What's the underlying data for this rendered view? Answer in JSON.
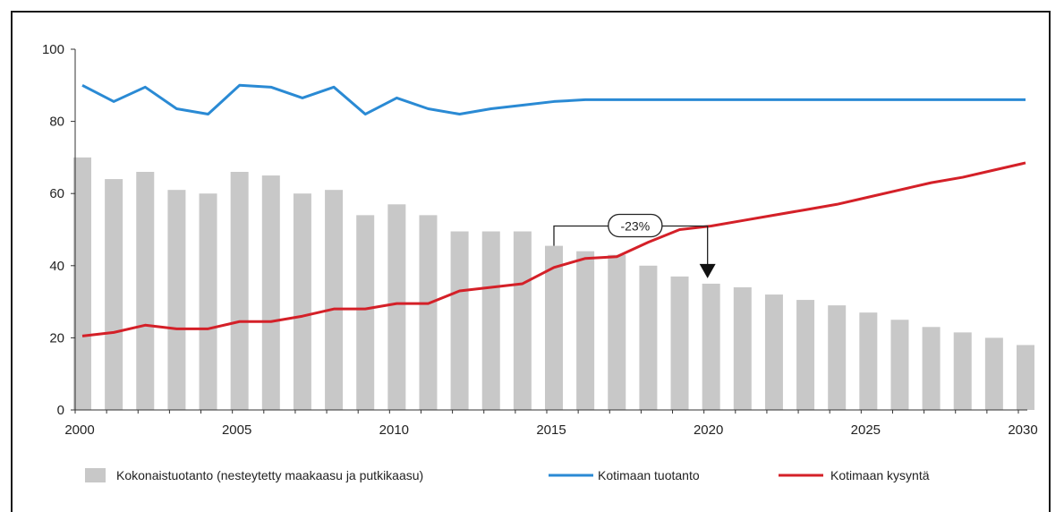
{
  "chart_data": {
    "type": "bar",
    "x": [
      2000,
      2001,
      2002,
      2003,
      2004,
      2005,
      2006,
      2007,
      2008,
      2009,
      2010,
      2011,
      2012,
      2013,
      2014,
      2015,
      2016,
      2017,
      2018,
      2019,
      2020,
      2021,
      2022,
      2023,
      2024,
      2025,
      2026,
      2027,
      2028,
      2029,
      2030
    ],
    "ylim": [
      0,
      100
    ],
    "yticks": [
      0,
      20,
      40,
      60,
      80,
      100
    ],
    "xticks": [
      2000,
      2005,
      2010,
      2015,
      2020,
      2025,
      2030
    ],
    "grid": false,
    "legend_position": "bottom",
    "series": [
      {
        "name": "Kokonaistuotanto (nesteytetty maakaasu ja putkikaasu)",
        "kind": "bar",
        "color": "#c8c8c8",
        "values": [
          70,
          64,
          66,
          61,
          60,
          66,
          65,
          60,
          61,
          54,
          57,
          54,
          49.5,
          49.5,
          49.5,
          45.5,
          44,
          43,
          40,
          37,
          35,
          34,
          32,
          30.5,
          29,
          27,
          25,
          23,
          21.5,
          20,
          18
        ]
      },
      {
        "name": "Kotimaan tuotanto",
        "kind": "line",
        "color": "#2a8ad4",
        "values": [
          90,
          85.5,
          89.5,
          83.5,
          82,
          90,
          89.5,
          86.5,
          89.5,
          82,
          86.5,
          83.5,
          82,
          83.5,
          84.5,
          85.5,
          86,
          86,
          86,
          86,
          86,
          86,
          86,
          86,
          86,
          86,
          86,
          86,
          86,
          86,
          86
        ]
      },
      {
        "name": "Kotimaan kysyntä",
        "kind": "line",
        "color": "#d42028",
        "values": [
          20.5,
          21.5,
          23.5,
          22.5,
          22.5,
          24.5,
          24.5,
          26,
          28,
          28,
          29.5,
          29.5,
          33,
          34,
          35,
          39.5,
          42,
          42.5,
          46.5,
          50,
          51,
          52.5,
          54,
          55.5,
          57,
          59,
          61,
          63,
          64.5,
          66.5,
          68.5
        ]
      }
    ],
    "annotations": [
      {
        "label": "-23%",
        "from_x": 2015,
        "to_x": 2020,
        "level": 51,
        "arrow_to": 37
      }
    ]
  }
}
